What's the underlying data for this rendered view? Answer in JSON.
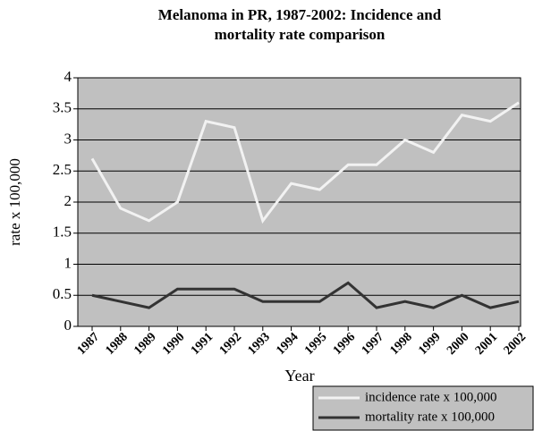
{
  "chart_data": {
    "type": "line",
    "title": [
      "Melanoma in PR, 1987-2002: Incidence and",
      "mortality rate comparison"
    ],
    "x_label": "Year",
    "y_label": "rate x 100,000",
    "categories": [
      "1987",
      "1988",
      "1989",
      "1990",
      "1991",
      "1992",
      "1993",
      "1994",
      "1995",
      "1996",
      "1997",
      "1998",
      "1999",
      "2000",
      "2001",
      "2002"
    ],
    "series": [
      {
        "name": "incidence rate x 100,000",
        "color": "#f2f2f2",
        "values": [
          2.7,
          1.9,
          1.7,
          2.0,
          3.3,
          3.2,
          1.7,
          2.3,
          2.2,
          2.6,
          2.6,
          3.0,
          2.8,
          3.4,
          3.3,
          3.6
        ]
      },
      {
        "name": "mortality rate x 100,000",
        "color": "#333333",
        "values": [
          0.5,
          0.4,
          0.3,
          0.6,
          0.6,
          0.6,
          0.4,
          0.4,
          0.4,
          0.7,
          0.3,
          0.4,
          0.3,
          0.5,
          0.3,
          0.4
        ]
      }
    ],
    "ylim": [
      0,
      4
    ],
    "yticks": [
      0,
      0.5,
      1,
      1.5,
      2,
      2.5,
      3,
      3.5,
      4
    ],
    "grid": true,
    "background": "#c0c0c0",
    "legend": "bottom-right"
  }
}
